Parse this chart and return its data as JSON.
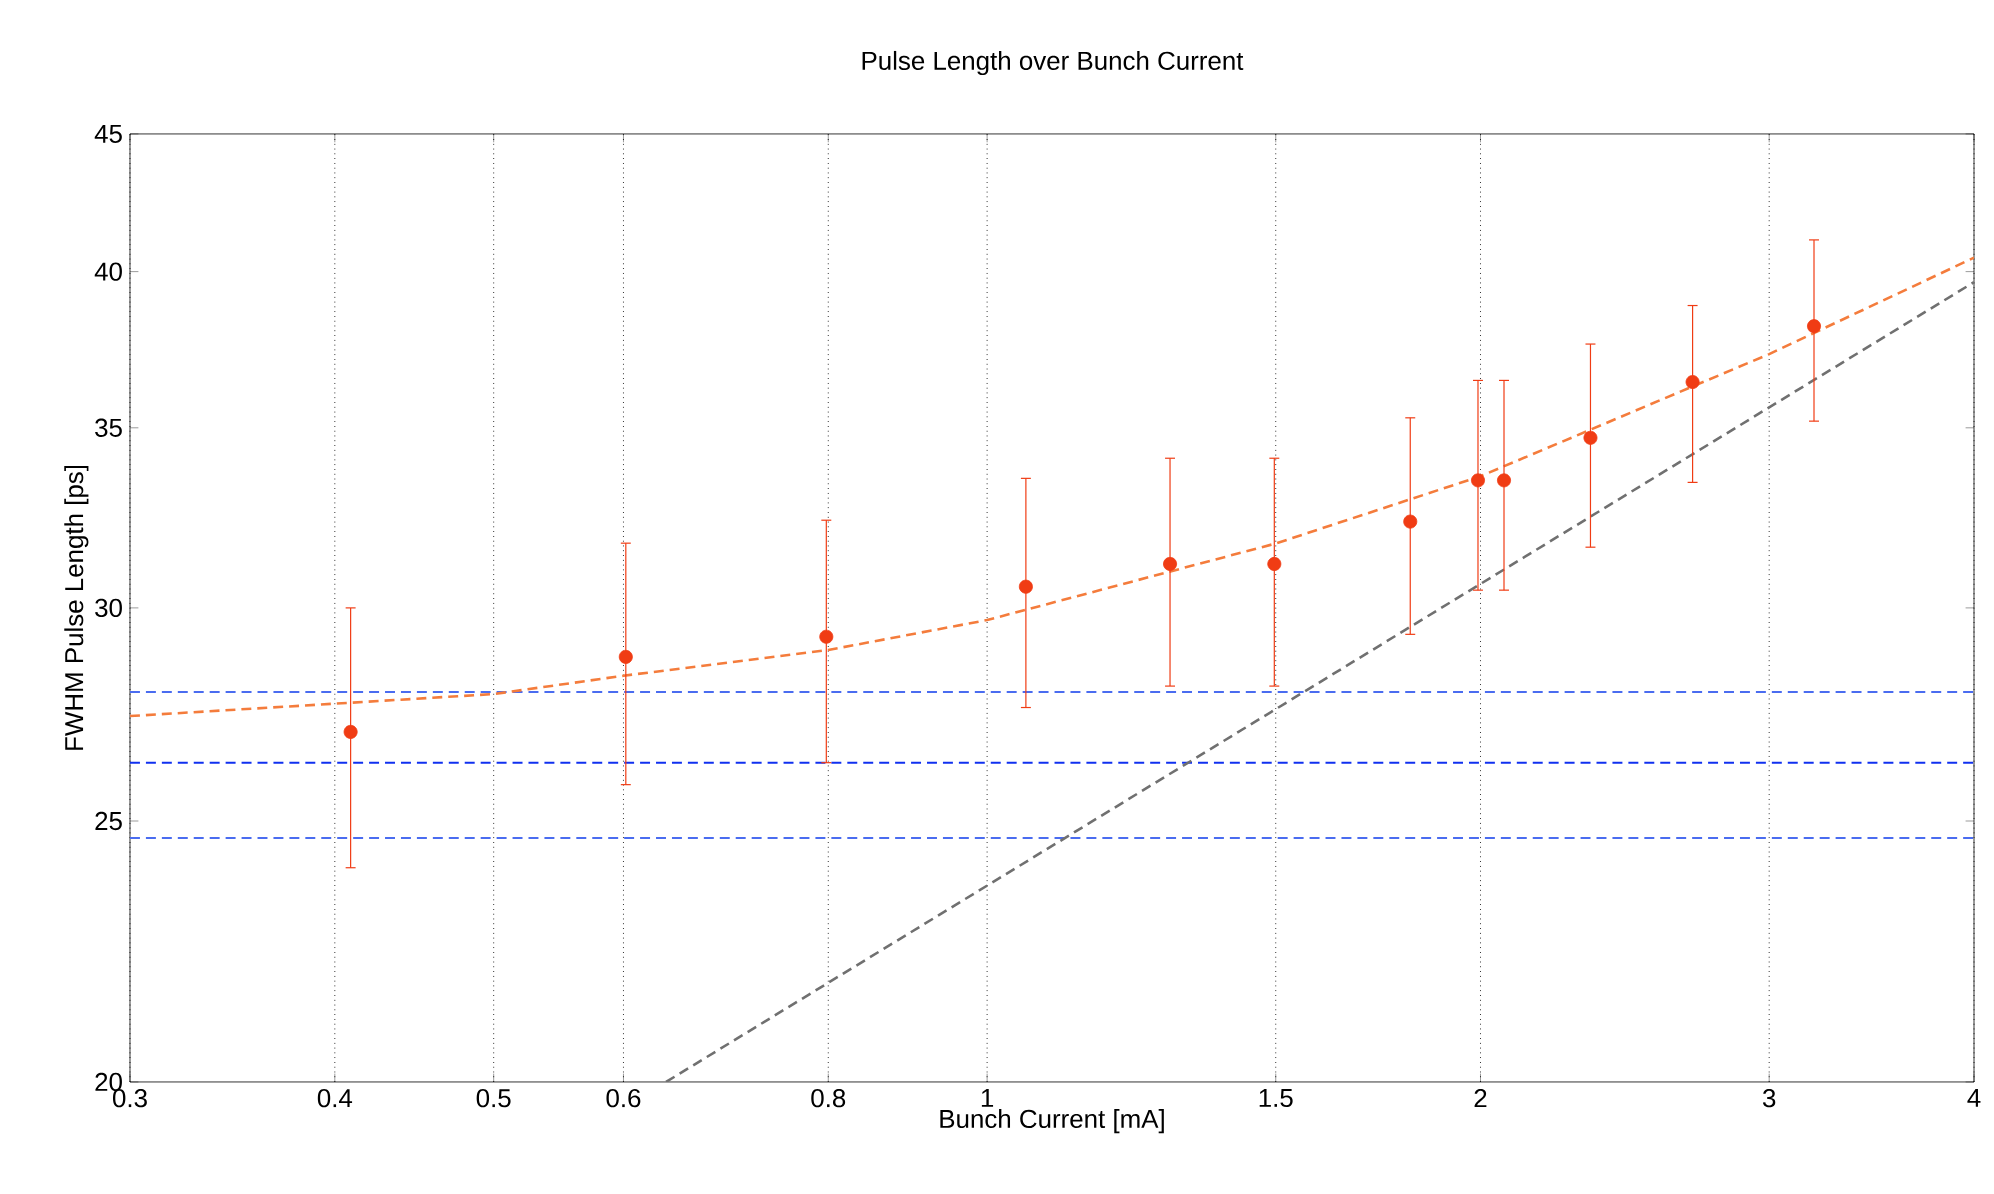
{
  "chart_data": {
    "type": "scatter",
    "title": "Pulse Length over Bunch Current",
    "xlabel": "Bunch Current [mA]",
    "ylabel": "FWHM Pulse Length [ps]",
    "log": "xy",
    "grid": "x",
    "xlim": [
      0.3,
      4
    ],
    "ylim": [
      20,
      45
    ],
    "xticks": [
      0.3,
      0.4,
      0.5,
      0.6,
      0.8,
      1,
      1.5,
      2,
      3,
      4
    ],
    "yticks": [
      20,
      25,
      30,
      35,
      40,
      45
    ],
    "series": [
      {
        "type": "line",
        "color": "#f47c3c",
        "line_style": "dashed",
        "marker": "none",
        "x": [
          0.3,
          0.5,
          0.6,
          0.8,
          1,
          1.5,
          2,
          3,
          4
        ],
        "values": [
          27.35,
          27.87,
          28.31,
          28.94,
          29.69,
          31.7,
          33.58,
          37.28,
          40.48
        ]
      },
      {
        "type": "line",
        "color": "#707070",
        "line_style": "dashed",
        "marker": "none",
        "x": [
          0.637,
          4
        ],
        "values": [
          20,
          39.65
        ]
      },
      {
        "type": "scatter",
        "color": "#f03c14",
        "marker": "circle",
        "x": [
          0.409,
          0.602,
          0.798,
          1.056,
          1.293,
          1.497,
          1.812,
          1.993,
          2.067,
          2.334,
          2.694,
          3.195
        ],
        "values": [
          26.98,
          28.77,
          29.27,
          30.55,
          31.15,
          31.15,
          32.3,
          33.46,
          33.46,
          34.7,
          36.4,
          38.18
        ],
        "errors": [
          [
            24.02,
            30.0
          ],
          [
            25.79,
            31.71
          ],
          [
            26.28,
            32.34
          ],
          [
            27.55,
            33.52
          ],
          [
            28.06,
            34.1
          ],
          [
            28.06,
            34.1
          ],
          [
            29.33,
            35.3
          ],
          [
            30.46,
            36.45
          ],
          [
            30.46,
            36.45
          ],
          [
            31.6,
            37.6
          ],
          [
            33.4,
            38.86
          ],
          [
            35.2,
            41.1
          ]
        ]
      }
    ],
    "ref_lines": [
      {
        "axis": "y",
        "value": 27.92,
        "color": "#4a6cf0",
        "line_style": "dashed"
      },
      {
        "axis": "y",
        "value": 26.28,
        "color": "#1030f0",
        "line_style": "dashed"
      },
      {
        "axis": "y",
        "value": 24.64,
        "color": "#4a6cf0",
        "line_style": "dashed"
      }
    ]
  }
}
